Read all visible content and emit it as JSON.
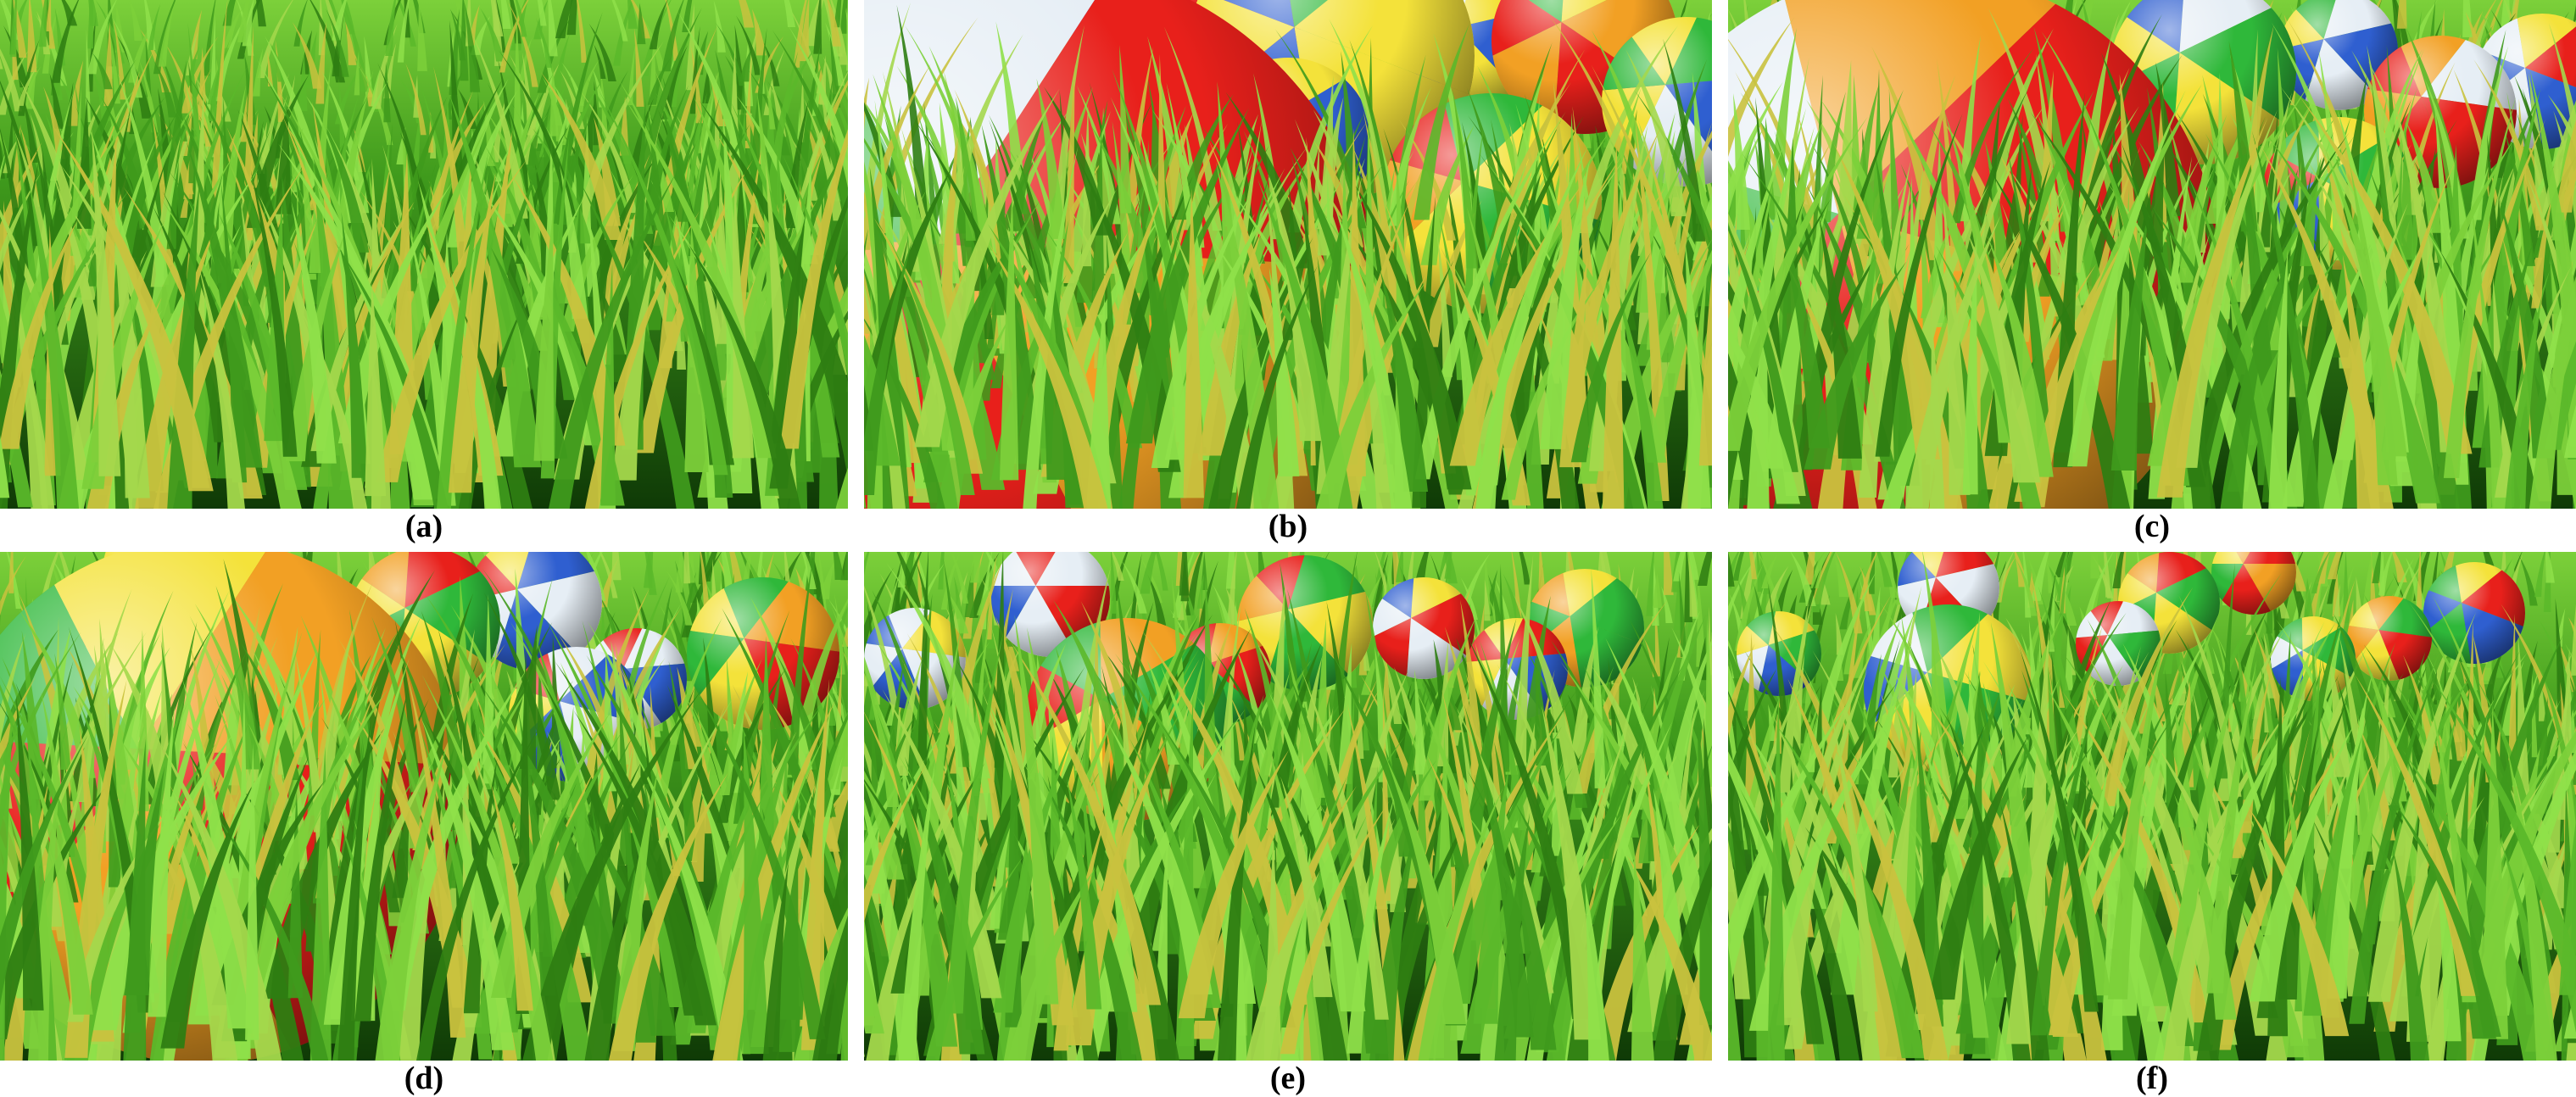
{
  "captions": [
    "(a)",
    "(b)",
    "(c)",
    "(d)",
    "(e)",
    "(f)"
  ],
  "colors": {
    "grass_light": "#7cd03a",
    "grass_mid": "#3f9a1c",
    "grass_dark": "#0f3a06",
    "grass_yellow": "#c9c23e",
    "ball_red": "#e8201b",
    "ball_orange": "#f2a024",
    "ball_yellow": "#f4e23a",
    "ball_green": "#2fb83a",
    "ball_blue": "#2f5fd0",
    "ball_white": "#e6eef5"
  },
  "panels": [
    {
      "label": "(a)",
      "balls": []
    },
    {
      "label": "(b)",
      "balls": [
        [
          0.38,
          0.0,
          0.14,
          [
            "ball_red",
            "ball_white",
            "ball_blue",
            "ball_yellow"
          ]
        ],
        [
          0.55,
          0.11,
          0.17,
          [
            "ball_yellow",
            "ball_blue",
            "ball_green",
            "ball_yellow"
          ]
        ],
        [
          0.72,
          0.08,
          0.08,
          [
            "ball_yellow",
            "ball_blue",
            "ball_red",
            "ball_white"
          ]
        ],
        [
          0.85,
          0.08,
          0.11,
          [
            "ball_orange",
            "ball_red",
            "ball_green",
            "ball_yellow"
          ]
        ],
        [
          0.97,
          0.2,
          0.1,
          [
            "ball_yellow",
            "ball_green",
            "ball_blue",
            "ball_white"
          ]
        ],
        [
          0.13,
          0.22,
          0.08,
          [
            "ball_red",
            "ball_orange",
            "ball_white",
            "ball_red"
          ]
        ],
        [
          0.42,
          0.18,
          0.05,
          [
            "ball_green",
            "ball_yellow",
            "ball_blue",
            "ball_white"
          ]
        ],
        [
          0.5,
          0.28,
          0.1,
          [
            "ball_blue",
            "ball_yellow",
            "ball_white",
            "ball_green"
          ]
        ],
        [
          0.74,
          0.4,
          0.13,
          [
            "ball_green",
            "ball_yellow",
            "ball_orange",
            "ball_red"
          ]
        ],
        [
          0.19,
          0.62,
          0.42,
          [
            "ball_red",
            "ball_orange",
            "ball_green",
            "ball_white"
          ]
        ]
      ]
    },
    {
      "label": "(c)",
      "balls": [
        [
          0.23,
          0.1,
          0.1,
          [
            "ball_yellow",
            "ball_blue",
            "ball_red",
            "ball_white"
          ]
        ],
        [
          0.56,
          0.14,
          0.11,
          [
            "ball_green",
            "ball_yellow",
            "ball_blue",
            "ball_white"
          ]
        ],
        [
          0.72,
          0.1,
          0.07,
          [
            "ball_white",
            "ball_blue",
            "ball_yellow",
            "ball_green"
          ]
        ],
        [
          0.84,
          0.22,
          0.09,
          [
            "ball_red",
            "ball_orange",
            "ball_white",
            "ball_red"
          ]
        ],
        [
          0.96,
          0.16,
          0.08,
          [
            "ball_blue",
            "ball_white",
            "ball_yellow",
            "ball_red"
          ]
        ],
        [
          0.08,
          0.26,
          0.07,
          [
            "ball_white",
            "ball_red",
            "ball_white",
            "ball_red"
          ]
        ],
        [
          0.46,
          0.36,
          0.09,
          [
            "ball_yellow",
            "ball_green",
            "ball_blue",
            "ball_white"
          ]
        ],
        [
          0.72,
          0.38,
          0.09,
          [
            "ball_green",
            "ball_yellow",
            "ball_blue",
            "ball_red"
          ]
        ],
        [
          0.22,
          0.54,
          0.36,
          [
            "ball_orange",
            "ball_red",
            "ball_green",
            "ball_white"
          ]
        ]
      ]
    },
    {
      "label": "(d)",
      "balls": [
        [
          0.22,
          0.05,
          0.1,
          [
            "ball_orange",
            "ball_red",
            "ball_white",
            "ball_yellow"
          ]
        ],
        [
          0.5,
          0.14,
          0.09,
          [
            "ball_green",
            "ball_yellow",
            "ball_orange",
            "ball_red"
          ]
        ],
        [
          0.63,
          0.1,
          0.08,
          [
            "ball_blue",
            "ball_white",
            "ball_red",
            "ball_yellow"
          ]
        ],
        [
          0.9,
          0.2,
          0.09,
          [
            "ball_yellow",
            "ball_green",
            "ball_orange",
            "ball_red"
          ]
        ],
        [
          0.16,
          0.14,
          0.08,
          [
            "ball_yellow",
            "ball_red",
            "ball_blue",
            "ball_white"
          ]
        ],
        [
          0.08,
          0.28,
          0.06,
          [
            "ball_white",
            "ball_blue",
            "ball_white",
            "ball_red"
          ]
        ],
        [
          0.75,
          0.25,
          0.06,
          [
            "ball_red",
            "ball_white",
            "ball_blue",
            "ball_white"
          ]
        ],
        [
          0.42,
          0.32,
          0.08,
          [
            "ball_green",
            "ball_yellow",
            "ball_red",
            "ball_white"
          ]
        ],
        [
          0.68,
          0.32,
          0.08,
          [
            "ball_white",
            "ball_blue",
            "ball_yellow",
            "ball_red"
          ]
        ],
        [
          0.24,
          0.49,
          0.31,
          [
            "ball_orange",
            "ball_red",
            "ball_green",
            "ball_yellow"
          ]
        ]
      ]
    },
    {
      "label": "(e)",
      "balls": [
        [
          0.06,
          0.21,
          0.06,
          [
            "ball_blue",
            "ball_white",
            "ball_yellow",
            "ball_white"
          ]
        ],
        [
          0.22,
          0.09,
          0.07,
          [
            "ball_red",
            "ball_white",
            "ball_blue",
            "ball_white"
          ]
        ],
        [
          0.52,
          0.14,
          0.08,
          [
            "ball_green",
            "ball_yellow",
            "ball_orange",
            "ball_red"
          ]
        ],
        [
          0.66,
          0.15,
          0.06,
          [
            "ball_red",
            "ball_white",
            "ball_blue",
            "ball_yellow"
          ]
        ],
        [
          0.85,
          0.15,
          0.07,
          [
            "ball_green",
            "ball_orange",
            "ball_yellow",
            "ball_green"
          ]
        ],
        [
          0.77,
          0.23,
          0.06,
          [
            "ball_yellow",
            "ball_red",
            "ball_blue",
            "ball_white"
          ]
        ],
        [
          0.42,
          0.24,
          0.06,
          [
            "ball_orange",
            "ball_red",
            "ball_green",
            "ball_yellow"
          ]
        ],
        [
          0.31,
          0.33,
          0.12,
          [
            "ball_green",
            "ball_orange",
            "ball_yellow",
            "ball_red"
          ]
        ]
      ]
    },
    {
      "label": "(f)",
      "balls": [
        [
          0.06,
          0.2,
          0.05,
          [
            "ball_yellow",
            "ball_green",
            "ball_blue",
            "ball_white"
          ]
        ],
        [
          0.26,
          0.07,
          0.06,
          [
            "ball_red",
            "ball_white",
            "ball_blue",
            "ball_yellow"
          ]
        ],
        [
          0.52,
          0.1,
          0.06,
          [
            "ball_green",
            "ball_yellow",
            "ball_orange",
            "ball_red"
          ]
        ],
        [
          0.62,
          0.04,
          0.05,
          [
            "ball_orange",
            "ball_red",
            "ball_green",
            "ball_yellow"
          ]
        ],
        [
          0.88,
          0.12,
          0.06,
          [
            "ball_blue",
            "ball_green",
            "ball_yellow",
            "ball_red"
          ]
        ],
        [
          0.78,
          0.17,
          0.05,
          [
            "ball_yellow",
            "ball_orange",
            "ball_green",
            "ball_red"
          ]
        ],
        [
          0.46,
          0.18,
          0.05,
          [
            "ball_red",
            "ball_white",
            "ball_green",
            "ball_white"
          ]
        ],
        [
          0.69,
          0.21,
          0.05,
          [
            "ball_green",
            "ball_yellow",
            "ball_blue",
            "ball_white"
          ]
        ],
        [
          0.26,
          0.27,
          0.1,
          [
            "ball_green",
            "ball_yellow",
            "ball_blue",
            "ball_white"
          ]
        ]
      ]
    }
  ]
}
